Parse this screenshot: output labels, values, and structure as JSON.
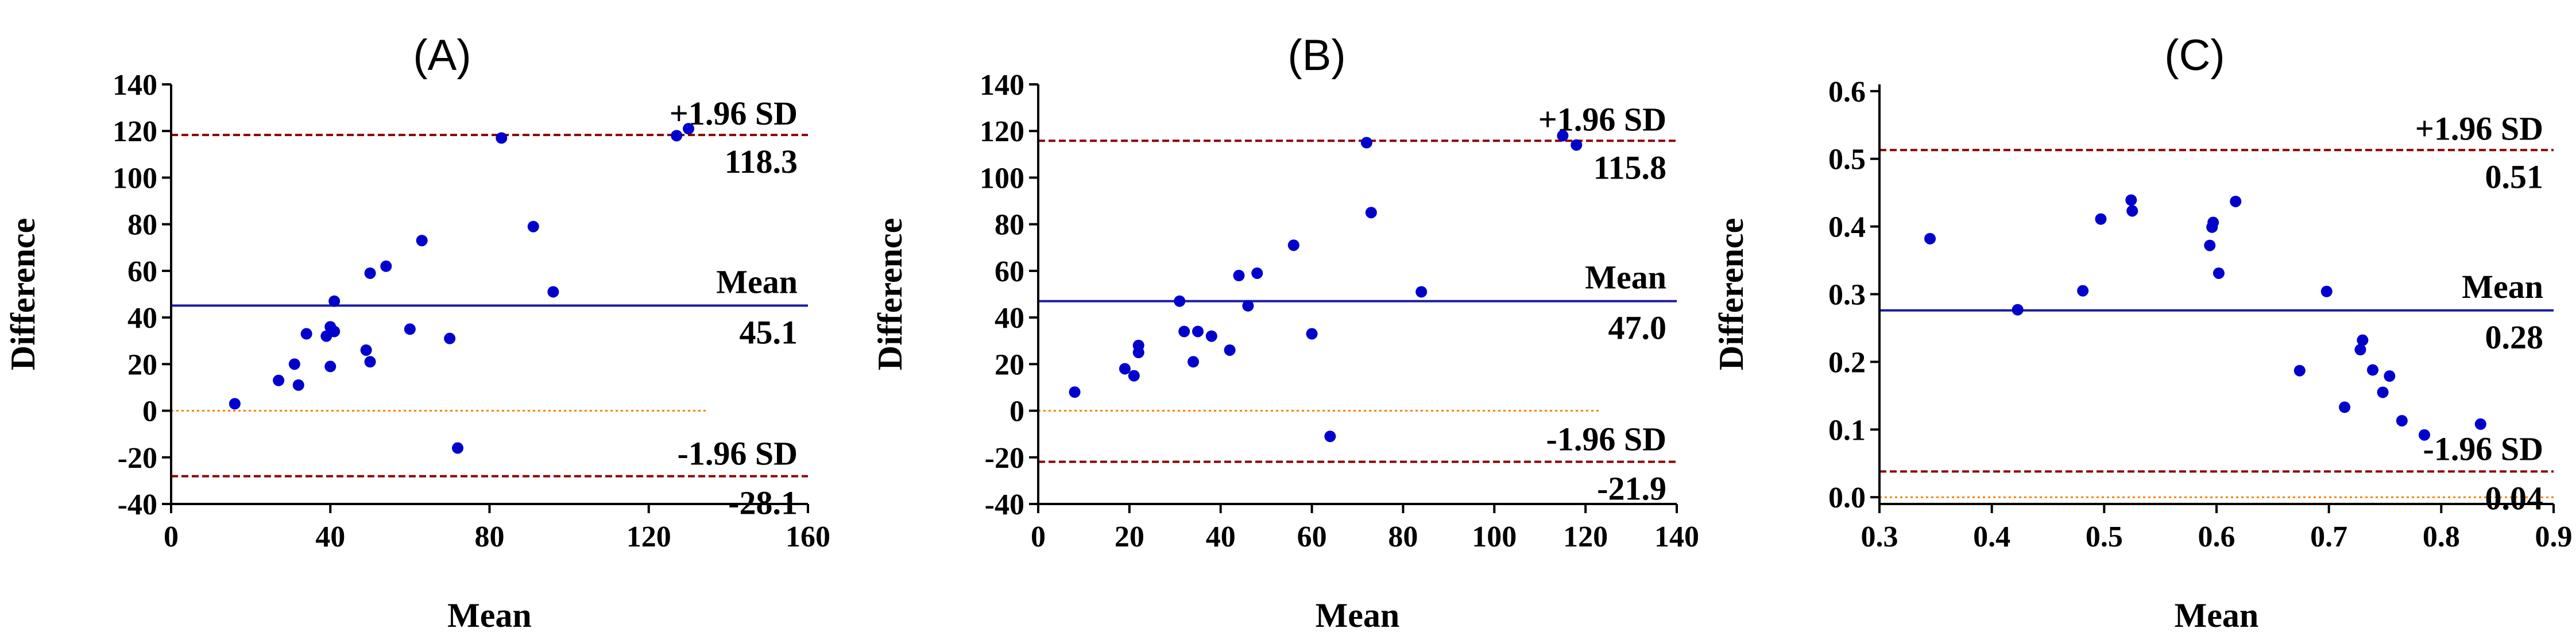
{
  "chart_data": [
    {
      "type": "scatter",
      "title": "(A)",
      "xlabel": "Mean",
      "ylabel": "Difference",
      "xlim": [
        0,
        160
      ],
      "ylim": [
        -40,
        140
      ],
      "xticks": [
        0,
        40,
        80,
        120,
        160
      ],
      "yticks": [
        -40,
        -20,
        0,
        20,
        40,
        60,
        80,
        100,
        120,
        140
      ],
      "xtick_labels": [
        "0",
        "40",
        "80",
        "120",
        "160"
      ],
      "ytick_labels": [
        "-40",
        "-20",
        "0",
        "20",
        "40",
        "60",
        "80",
        "100",
        "120",
        "140"
      ],
      "mean": 45.1,
      "upper_loa": 118.3,
      "lower_loa": -28.1,
      "zero_line_end": 135,
      "upper_label": "+1.96 SD",
      "mean_label": "Mean",
      "lower_label": "-1.96 SD",
      "upper_value_label": "118.3",
      "mean_value_label": "45.1",
      "lower_value_label": "-28.1",
      "points": [
        [
          16,
          3
        ],
        [
          27,
          13
        ],
        [
          31,
          20
        ],
        [
          32,
          11
        ],
        [
          34,
          33
        ],
        [
          39,
          32
        ],
        [
          40,
          19
        ],
        [
          40,
          36
        ],
        [
          41,
          34
        ],
        [
          41,
          47
        ],
        [
          49,
          26
        ],
        [
          50,
          21
        ],
        [
          50,
          59
        ],
        [
          54,
          62
        ],
        [
          60,
          35
        ],
        [
          63,
          73
        ],
        [
          70,
          31
        ],
        [
          72,
          -16
        ],
        [
          83,
          117
        ],
        [
          91,
          79
        ],
        [
          96,
          51
        ],
        [
          127,
          118
        ],
        [
          130,
          121
        ]
      ]
    },
    {
      "type": "scatter",
      "title": "(B)",
      "xlabel": "Mean",
      "ylabel": "Difference",
      "xlim": [
        0,
        140
      ],
      "ylim": [
        -40,
        140
      ],
      "xticks": [
        0,
        20,
        40,
        60,
        80,
        100,
        120,
        140
      ],
      "yticks": [
        -40,
        -20,
        0,
        20,
        40,
        60,
        80,
        100,
        120,
        140
      ],
      "xtick_labels": [
        "0",
        "20",
        "40",
        "60",
        "80",
        "100",
        "120",
        "140"
      ],
      "ytick_labels": [
        "-40",
        "-20",
        "0",
        "20",
        "40",
        "60",
        "80",
        "100",
        "120",
        "140"
      ],
      "mean": 47.0,
      "upper_loa": 115.8,
      "lower_loa": -21.9,
      "zero_line_end": 123,
      "upper_label": "+1.96 SD",
      "mean_label": "Mean",
      "lower_label": "-1.96 SD",
      "upper_value_label": "115.8",
      "mean_value_label": "47.0",
      "lower_value_label": "-21.9",
      "points": [
        [
          8,
          8
        ],
        [
          19,
          18
        ],
        [
          21,
          15
        ],
        [
          22,
          25
        ],
        [
          22,
          28
        ],
        [
          31,
          47
        ],
        [
          32,
          34
        ],
        [
          34,
          21
        ],
        [
          35,
          34
        ],
        [
          38,
          32
        ],
        [
          42,
          26
        ],
        [
          44,
          58
        ],
        [
          46,
          45
        ],
        [
          48,
          59
        ],
        [
          56,
          71
        ],
        [
          60,
          33
        ],
        [
          64,
          -11
        ],
        [
          72,
          115
        ],
        [
          73,
          85
        ],
        [
          84,
          51
        ],
        [
          115,
          118
        ],
        [
          118,
          114
        ]
      ]
    },
    {
      "type": "scatter",
      "title": "(C)",
      "xlabel": "Mean",
      "ylabel": "Difference",
      "xlim": [
        0.3,
        0.9
      ],
      "ylim": [
        -0.01,
        0.61
      ],
      "xticks": [
        0.3,
        0.4,
        0.5,
        0.6,
        0.7,
        0.8,
        0.9
      ],
      "yticks": [
        0.0,
        0.1,
        0.2,
        0.3,
        0.4,
        0.5,
        0.6
      ],
      "xtick_labels": [
        "0.3",
        "0.4",
        "0.5",
        "0.6",
        "0.7",
        "0.8",
        "0.9"
      ],
      "ytick_labels": [
        "0.0",
        "0.1",
        "0.2",
        "0.3",
        "0.4",
        "0.5",
        "0.6"
      ],
      "mean": 0.276,
      "upper_loa": 0.513,
      "lower_loa": 0.038,
      "zero_line_end": 0.9,
      "upper_label": "+1.96 SD",
      "mean_label": "Mean",
      "lower_label": "-1.96 SD",
      "upper_value_label": "0.51",
      "mean_value_label": "0.28",
      "lower_value_label": "0.04",
      "points": [
        [
          0.345,
          0.382
        ],
        [
          0.423,
          0.277
        ],
        [
          0.481,
          0.305
        ],
        [
          0.497,
          0.411
        ],
        [
          0.524,
          0.439
        ],
        [
          0.525,
          0.423
        ],
        [
          0.594,
          0.372
        ],
        [
          0.596,
          0.399
        ],
        [
          0.597,
          0.406
        ],
        [
          0.602,
          0.331
        ],
        [
          0.617,
          0.437
        ],
        [
          0.674,
          0.187
        ],
        [
          0.698,
          0.304
        ],
        [
          0.714,
          0.133
        ],
        [
          0.728,
          0.218
        ],
        [
          0.73,
          0.232
        ],
        [
          0.739,
          0.188
        ],
        [
          0.748,
          0.155
        ],
        [
          0.754,
          0.179
        ],
        [
          0.765,
          0.113
        ],
        [
          0.785,
          0.092
        ],
        [
          0.835,
          0.108
        ]
      ]
    }
  ],
  "colors": {
    "points": "#0000cc",
    "mean_line": "#1a1aa6",
    "loa_line": "#8b0000",
    "zero_line": "#ff7f00",
    "axis": "#000000"
  }
}
